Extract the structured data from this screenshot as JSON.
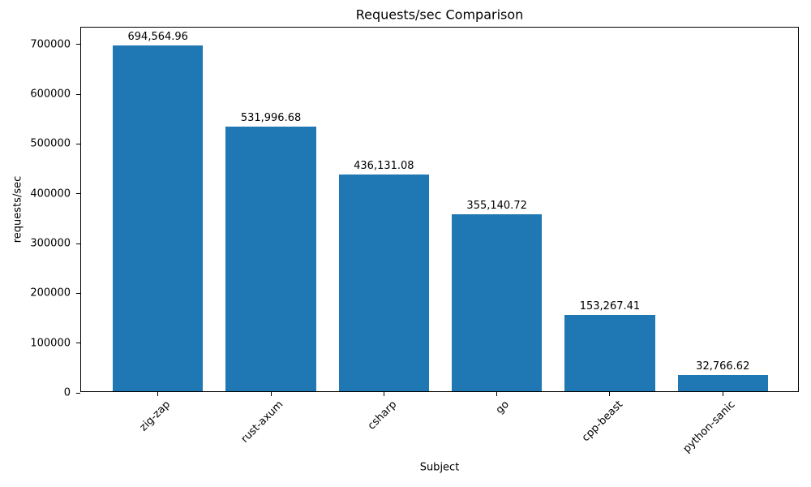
{
  "chart_data": {
    "type": "bar",
    "title": "Requests/sec Comparison",
    "xlabel": "Subject",
    "ylabel": "requests/sec",
    "categories": [
      "zig-zap",
      "rust-axum",
      "csharp",
      "go",
      "cpp-beast",
      "python-sanic"
    ],
    "values": [
      694564.96,
      531996.68,
      436131.08,
      355140.72,
      153267.41,
      32766.62
    ],
    "value_labels": [
      "694,564.96",
      "531,996.68",
      "436,131.08",
      "355,140.72",
      "153,267.41",
      "32,766.62"
    ],
    "yticks": [
      0,
      100000,
      200000,
      300000,
      400000,
      500000,
      600000,
      700000
    ],
    "ytick_labels": [
      "0",
      "100000",
      "200000",
      "300000",
      "400000",
      "500000",
      "600000",
      "700000"
    ],
    "ylim": [
      0,
      734000
    ],
    "xlim": [
      -0.68,
      5.68
    ],
    "bar_width": 0.8,
    "bar_color": "#1f77b4",
    "x_tick_rotation_deg": 45,
    "grid": false,
    "legend": false
  }
}
